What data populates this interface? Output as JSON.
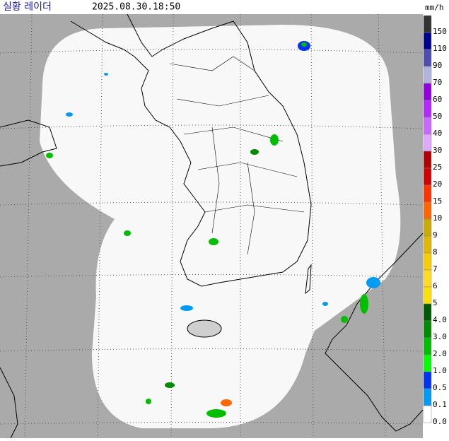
{
  "header": {
    "title": "실황 레이더",
    "time": "2025.08.30.18:50"
  },
  "legend": {
    "unit": "mm/h",
    "items": [
      {
        "label": "150",
        "color": "#333333"
      },
      {
        "label": "110",
        "color": "#000390"
      },
      {
        "label": "90",
        "color": "#4c4eb1"
      },
      {
        "label": "70",
        "color": "#b3b4de"
      },
      {
        "label": "60",
        "color": "#9300e4"
      },
      {
        "label": "50",
        "color": "#b329ff"
      },
      {
        "label": "40",
        "color": "#c969ff"
      },
      {
        "label": "30",
        "color": "#e0a9ff"
      },
      {
        "label": "25",
        "color": "#b40000"
      },
      {
        "label": "20",
        "color": "#d20000"
      },
      {
        "label": "15",
        "color": "#ff3200"
      },
      {
        "label": "10",
        "color": "#ff6600"
      },
      {
        "label": "9",
        "color": "#ccaa00"
      },
      {
        "label": "8",
        "color": "#e0b900"
      },
      {
        "label": "7",
        "color": "#f9cd00"
      },
      {
        "label": "6",
        "color": "#ffdc1f"
      },
      {
        "label": "5",
        "color": "#ffe100"
      },
      {
        "label": "4.0",
        "color": "#005a00"
      },
      {
        "label": "3.0",
        "color": "#008c00"
      },
      {
        "label": "2.0",
        "color": "#00be00"
      },
      {
        "label": "1.0",
        "color": "#00ff00"
      },
      {
        "label": "0.5",
        "color": "#0033f5"
      },
      {
        "label": "0.1",
        "color": "#009bf5"
      },
      {
        "label": "0.0",
        "color": "#ffffff"
      }
    ]
  }
}
